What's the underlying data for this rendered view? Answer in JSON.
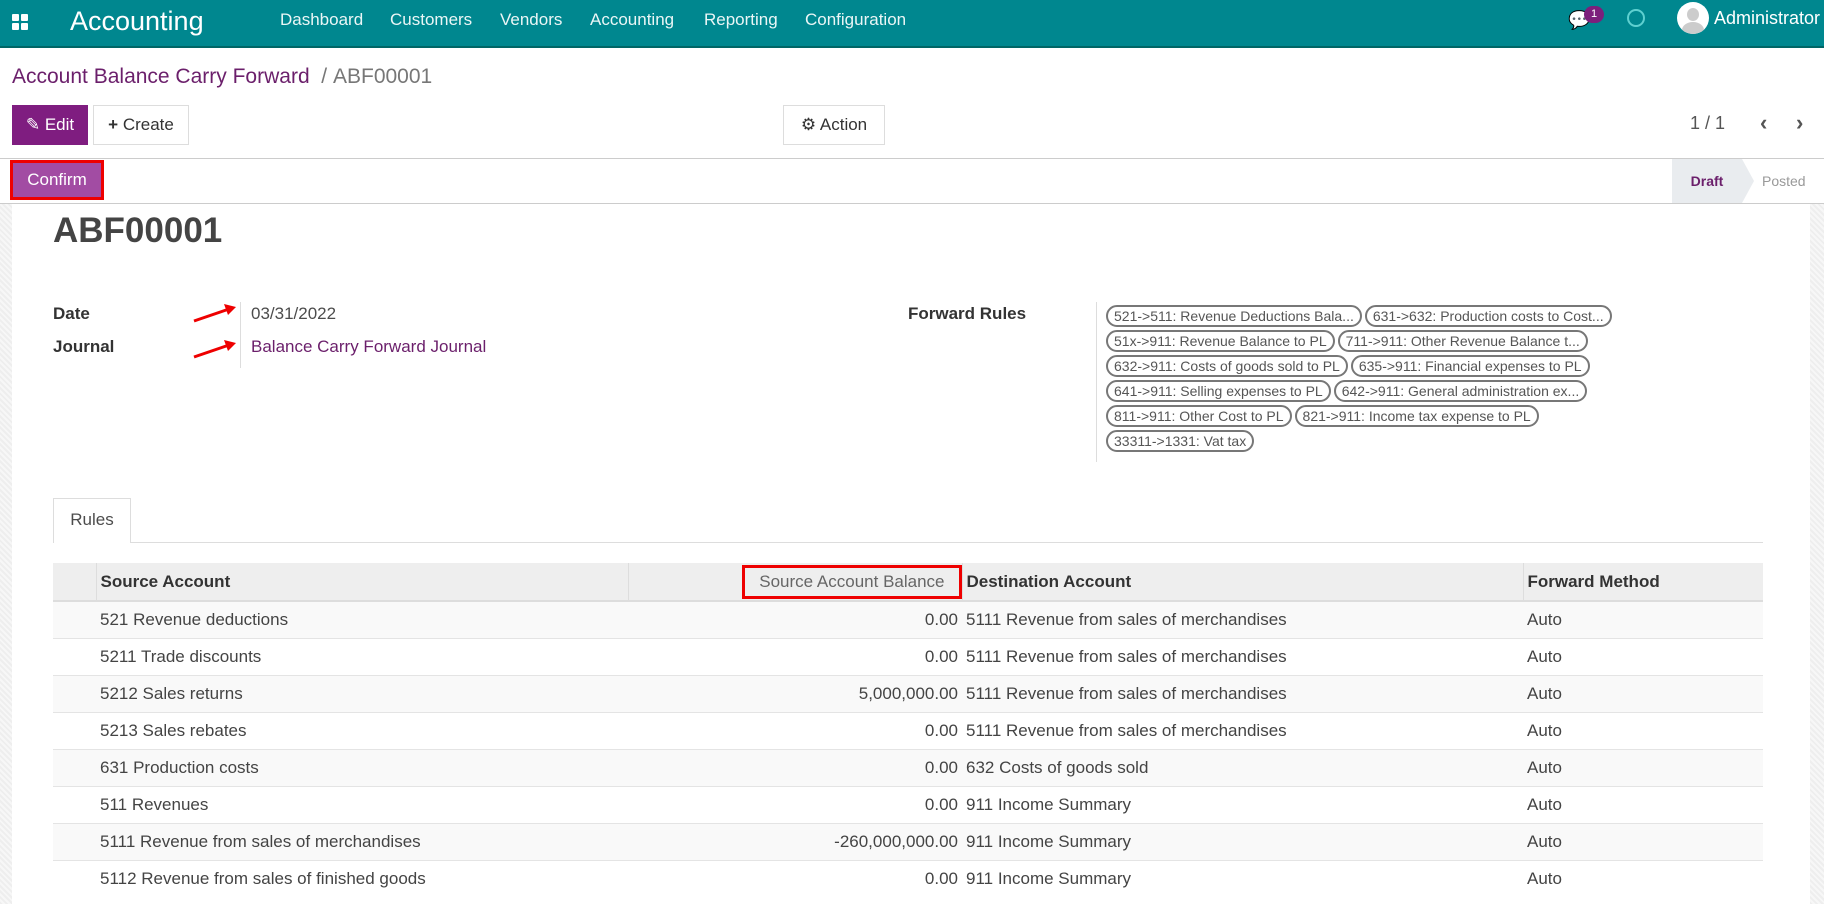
{
  "navbar": {
    "app": "Accounting",
    "menu": [
      "Dashboard",
      "Customers",
      "Vendors",
      "Accounting",
      "Reporting",
      "Configuration"
    ],
    "chat_count": "1",
    "user": "Administrator",
    "color": "#00878f"
  },
  "breadcrumb": {
    "parent": "Account Balance Carry Forward",
    "current": "ABF00001"
  },
  "toolbar": {
    "edit": "Edit",
    "create": "Create",
    "action": "Action",
    "pager": "1 / 1"
  },
  "statusbar": {
    "confirm": "Confirm",
    "states": [
      "Draft",
      "Posted"
    ],
    "active": "Draft"
  },
  "record": {
    "name": "ABF00001",
    "date_label": "Date",
    "date": "03/31/2022",
    "journal_label": "Journal",
    "journal": "Balance Carry Forward Journal",
    "rules_label": "Forward Rules",
    "rules": [
      "521->511: Revenue Deductions Bala...",
      "631->632: Production costs to Cost...",
      "51x->911: Revenue Balance to PL",
      "711->911: Other Revenue Balance t...",
      "632->911: Costs of goods sold to PL",
      "635->911: Financial expenses to PL",
      "641->911: Selling expenses to PL",
      "642->911: General administration ex...",
      "811->911: Other Cost to PL",
      "821->911: Income tax expense to PL",
      "33311->1331: Vat tax"
    ]
  },
  "tabs": [
    "Rules"
  ],
  "table": {
    "headers": [
      "Source Account",
      "Source Account Balance",
      "Destination Account",
      "Forward Method"
    ],
    "rows": [
      [
        "521 Revenue deductions",
        "0.00",
        "5111 Revenue from sales of merchandises",
        "Auto"
      ],
      [
        "5211 Trade discounts",
        "0.00",
        "5111 Revenue from sales of merchandises",
        "Auto"
      ],
      [
        "5212 Sales returns",
        "5,000,000.00",
        "5111 Revenue from sales of merchandises",
        "Auto"
      ],
      [
        "5213 Sales rebates",
        "0.00",
        "5111 Revenue from sales of merchandises",
        "Auto"
      ],
      [
        "631 Production costs",
        "0.00",
        "632 Costs of goods sold",
        "Auto"
      ],
      [
        "511 Revenues",
        "0.00",
        "911 Income Summary",
        "Auto"
      ],
      [
        "5111 Revenue from sales of merchandises",
        "-260,000,000.00",
        "911 Income Summary",
        "Auto"
      ],
      [
        "5112 Revenue from sales of finished goods",
        "0.00",
        "911 Income Summary",
        "Auto"
      ]
    ]
  }
}
